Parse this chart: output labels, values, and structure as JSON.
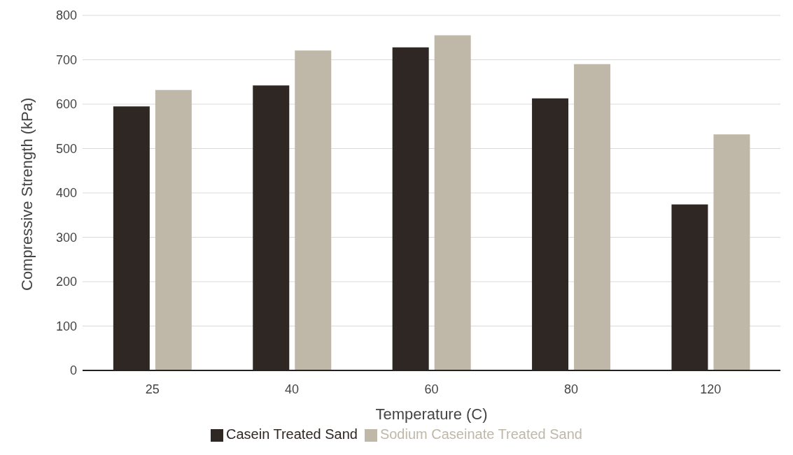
{
  "chart_data": {
    "type": "bar",
    "xlabel": "Temperature (C)",
    "ylabel": "Compressive Strength (kPa)",
    "categories": [
      "25",
      "40",
      "60",
      "80",
      "120"
    ],
    "series": [
      {
        "name": "Casein Treated Sand",
        "color": "#2e2724",
        "values": [
          595,
          642,
          728,
          613,
          374
        ]
      },
      {
        "name": "Sodium Caseinate Treated Sand",
        "color": "#bfb8a8",
        "values": [
          632,
          721,
          755,
          690,
          532
        ]
      }
    ],
    "ylim": [
      0,
      800
    ],
    "yticks": [
      0,
      100,
      200,
      300,
      400,
      500,
      600,
      700,
      800
    ],
    "grid": "y",
    "legend": "bottom"
  }
}
